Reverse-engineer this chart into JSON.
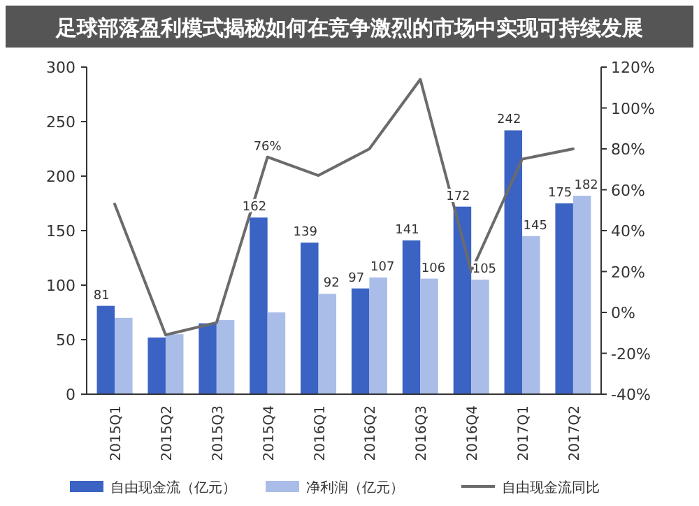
{
  "chart_data": {
    "type": "bar",
    "title": "足球部落盈利模式揭秘如何在竞争激烈的市场中实现可持续发展",
    "categories": [
      "2015Q1",
      "2015Q2",
      "2015Q3",
      "2015Q4",
      "2016Q1",
      "2016Q2",
      "2016Q3",
      "2016Q4",
      "2017Q1",
      "2017Q2"
    ],
    "series": [
      {
        "name": "自由现金流（亿元）",
        "color": "#3b63c4",
        "values": [
          81,
          52,
          65,
          162,
          139,
          97,
          141,
          172,
          242,
          175
        ],
        "value_labels": [
          "81",
          null,
          null,
          "162",
          "139",
          "97",
          "141",
          "172",
          "242",
          "175"
        ]
      },
      {
        "name": "净利润（亿元）",
        "color": "#a9bde8",
        "values": [
          70,
          55,
          68,
          75,
          92,
          107,
          106,
          105,
          145,
          182
        ],
        "value_labels": [
          null,
          null,
          null,
          null,
          "92",
          "107",
          "106",
          "105",
          "145",
          "182"
        ]
      },
      {
        "name": "自由现金流同比",
        "type": "line",
        "axis": "y2",
        "color": "#6b6b6b",
        "values": [
          53,
          -11,
          -5,
          76,
          67,
          80,
          114,
          20,
          75,
          80
        ],
        "value_labels": [
          null,
          null,
          null,
          "76%",
          null,
          null,
          null,
          null,
          null,
          null
        ]
      }
    ],
    "ylim": [
      0,
      300
    ],
    "yticks": [
      0,
      50,
      100,
      150,
      200,
      250,
      300
    ],
    "y2lim": [
      -40,
      120
    ],
    "y2ticks": [
      {
        "value": -40,
        "label": "-40%"
      },
      {
        "value": -20,
        "label": "-20%"
      },
      {
        "value": 0,
        "label": "0%"
      },
      {
        "value": 20,
        "label": "20%"
      },
      {
        "value": 40,
        "label": "40%"
      },
      {
        "value": 60,
        "label": "60%"
      },
      {
        "value": 80,
        "label": "80%"
      },
      {
        "value": 100,
        "label": "100%"
      },
      {
        "value": 120,
        "label": "120%"
      }
    ],
    "legend": "bottom",
    "grid": false,
    "marker": "none",
    "line_style": "solid"
  }
}
